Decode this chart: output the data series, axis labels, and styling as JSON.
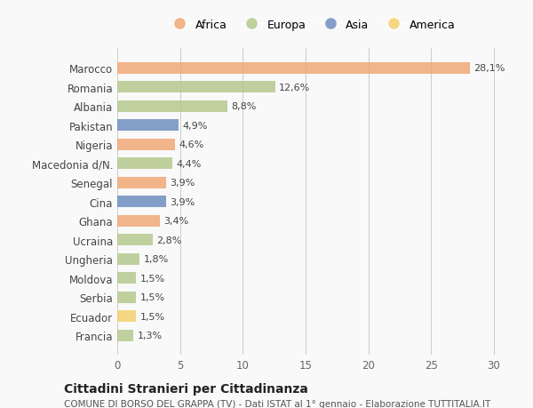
{
  "countries": [
    "Marocco",
    "Romania",
    "Albania",
    "Pakistan",
    "Nigeria",
    "Macedonia d/N.",
    "Senegal",
    "Cina",
    "Ghana",
    "Ucraina",
    "Ungheria",
    "Moldova",
    "Serbia",
    "Ecuador",
    "Francia"
  ],
  "values": [
    28.1,
    12.6,
    8.8,
    4.9,
    4.6,
    4.4,
    3.9,
    3.9,
    3.4,
    2.8,
    1.8,
    1.5,
    1.5,
    1.5,
    1.3
  ],
  "labels": [
    "28,1%",
    "12,6%",
    "8,8%",
    "4,9%",
    "4,6%",
    "4,4%",
    "3,9%",
    "3,9%",
    "3,4%",
    "2,8%",
    "1,8%",
    "1,5%",
    "1,5%",
    "1,5%",
    "1,3%"
  ],
  "continents": [
    "Africa",
    "Europa",
    "Europa",
    "Asia",
    "Africa",
    "Europa",
    "Africa",
    "Asia",
    "Africa",
    "Europa",
    "Europa",
    "Europa",
    "Europa",
    "America",
    "Europa"
  ],
  "continent_colors": {
    "Africa": "#F0A878",
    "Europa": "#B5C98E",
    "Asia": "#6F8FBF",
    "America": "#F5D06E"
  },
  "legend_order": [
    "Africa",
    "Europa",
    "Asia",
    "America"
  ],
  "title": "Cittadini Stranieri per Cittadinanza",
  "subtitle": "COMUNE DI BORSO DEL GRAPPA (TV) - Dati ISTAT al 1° gennaio - Elaborazione TUTTITALIA.IT",
  "xlim": [
    0,
    31
  ],
  "xticks": [
    0,
    5,
    10,
    15,
    20,
    25,
    30
  ],
  "background_color": "#f9f9f9",
  "bar_alpha": 0.85
}
